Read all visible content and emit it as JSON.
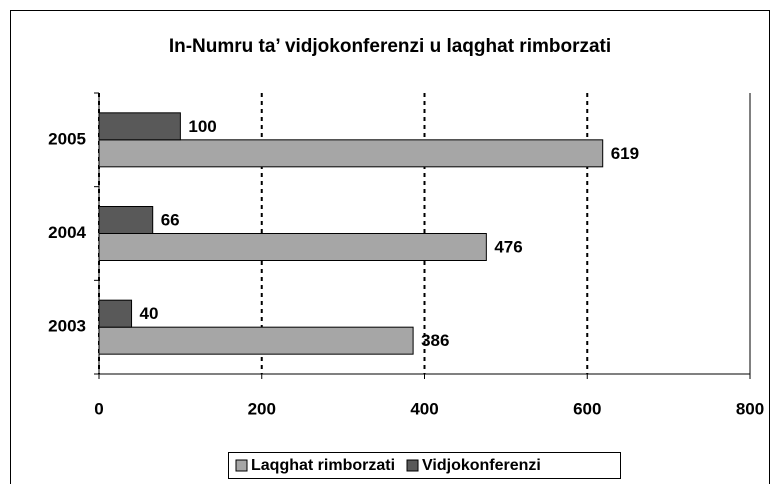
{
  "chart_data": {
    "type": "bar",
    "orientation": "horizontal",
    "title": "In-Numru ta’ vidjokonferenzi u laqghat rimborzati",
    "categories": [
      "2003",
      "2004",
      "2005"
    ],
    "series": [
      {
        "name": "Laqghat rimborzati",
        "color": "#a6a6a6",
        "values": [
          386,
          476,
          619
        ]
      },
      {
        "name": "Vidjokonferenzi",
        "color": "#595959",
        "values": [
          40,
          66,
          100
        ]
      }
    ],
    "xlim": [
      0,
      800
    ],
    "xticks": [
      0,
      200,
      400,
      600,
      800
    ],
    "grid": true,
    "legend": "bottom"
  }
}
